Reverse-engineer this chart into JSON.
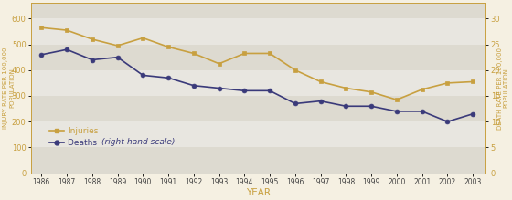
{
  "years": [
    1986,
    1987,
    1988,
    1989,
    1990,
    1991,
    1992,
    1993,
    1994,
    1995,
    1996,
    1997,
    1998,
    1999,
    2000,
    2001,
    2002,
    2003
  ],
  "injuries": [
    565,
    555,
    520,
    495,
    525,
    490,
    465,
    425,
    465,
    465,
    400,
    355,
    330,
    315,
    285,
    325,
    350,
    355
  ],
  "deaths": [
    23,
    24,
    22,
    22.5,
    19,
    18.5,
    17,
    16.5,
    16,
    16,
    13.5,
    14,
    13,
    13,
    12,
    12,
    10,
    11.5
  ],
  "injury_color": "#c8a040",
  "death_color": "#3a3a7a",
  "bg_color": "#f5f0e2",
  "band1_color": "#dddad0",
  "band2_color": "#e8e6e0",
  "ylim_left": [
    0,
    660
  ],
  "ylim_right": [
    0,
    33
  ],
  "yticks_left": [
    0,
    100,
    200,
    300,
    400,
    500,
    600
  ],
  "yticks_right": [
    0,
    5,
    10,
    15,
    20,
    25,
    30
  ],
  "ylabel_left": "INJURY RATE PER 100,000\nPOPULATION",
  "ylabel_right": "DEATH RATE PER 100,000\nPOPULATION",
  "xlabel": "YEAR",
  "legend_injuries": "Injuries",
  "legend_deaths_normal": "Deaths ",
  "legend_deaths_italic": "(right-hand scale)",
  "marker_injuries": "s",
  "marker_deaths": "o",
  "markersize": 3.5,
  "linewidth": 1.2
}
